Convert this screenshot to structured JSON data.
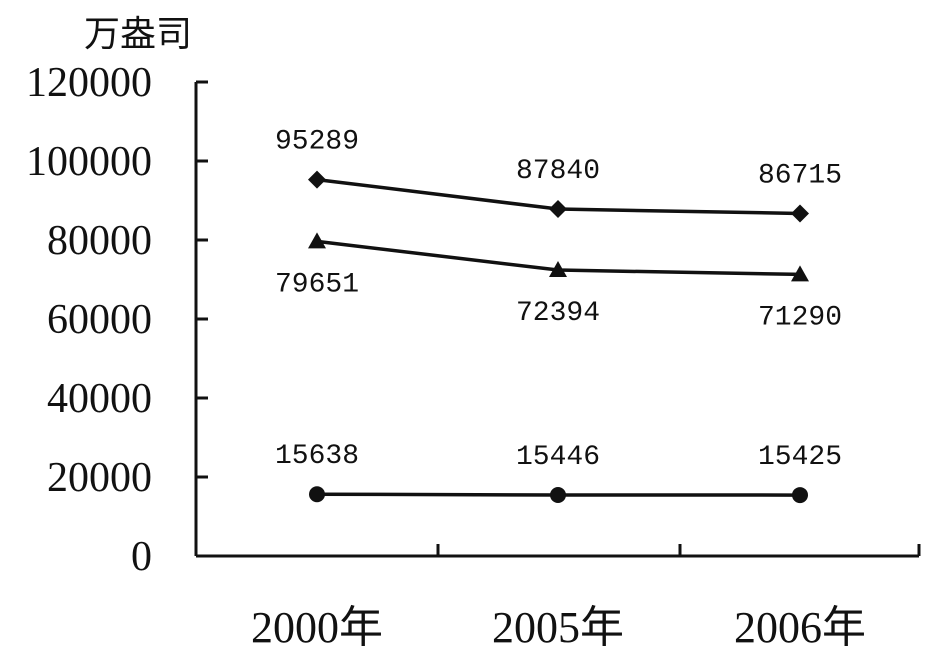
{
  "chart_data": {
    "type": "line",
    "title": "",
    "xlabel": "",
    "ylabel": "万盎司",
    "categories": [
      "2000年",
      "2005年",
      "2006年"
    ],
    "ylim": [
      0,
      120000
    ],
    "yticks": [
      "0",
      "20000",
      "40000",
      "60000",
      "80000",
      "100000",
      "120000"
    ],
    "grid": false,
    "series": [
      {
        "marker": "diamond",
        "values": [
          95289,
          87840,
          86715
        ],
        "labels": [
          "95289",
          "87840",
          "86715"
        ],
        "label_position": "above"
      },
      {
        "marker": "triangle",
        "values": [
          79651,
          72394,
          71290
        ],
        "labels": [
          "79651",
          "72394",
          "71290"
        ],
        "label_position": "below"
      },
      {
        "marker": "circle",
        "values": [
          15638,
          15446,
          15425
        ],
        "labels": [
          "15638",
          "15446",
          "15425"
        ],
        "label_position": "above"
      }
    ]
  }
}
